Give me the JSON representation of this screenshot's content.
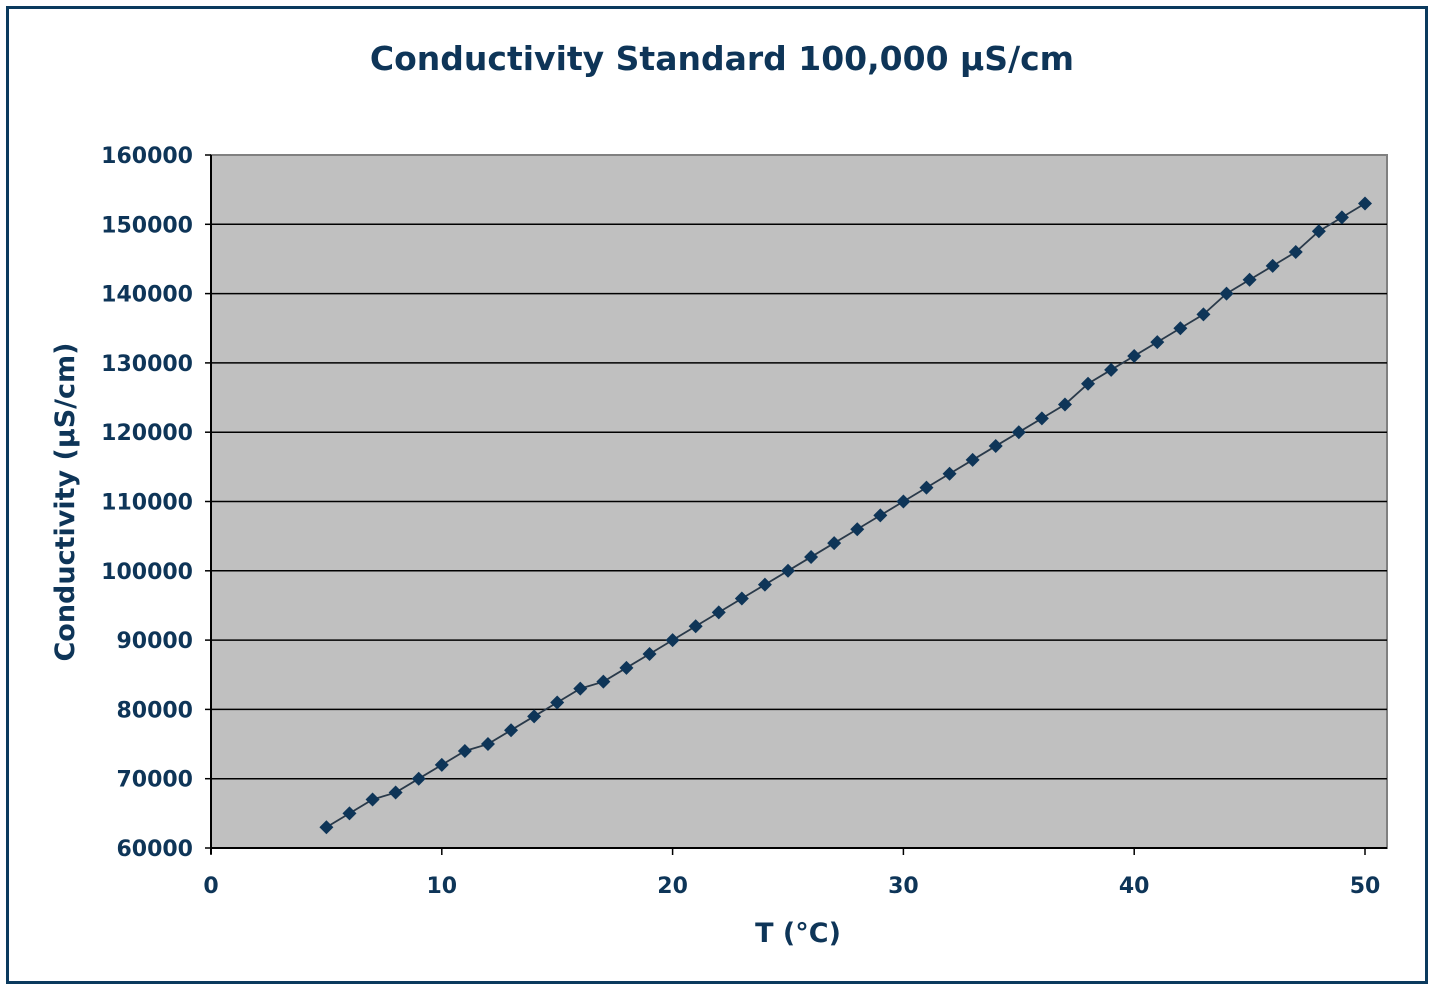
{
  "chart_data": {
    "type": "line",
    "title": "Conductivity Standard 100,000 µS/cm",
    "xlabel": "T (°C)",
    "ylabel": "Conductivity (µS/cm)",
    "xlim": [
      0,
      50
    ],
    "ylim": [
      60000,
      160000
    ],
    "xticks": [
      0,
      10,
      20,
      30,
      40,
      50
    ],
    "yticks": [
      60000,
      70000,
      80000,
      90000,
      100000,
      110000,
      120000,
      130000,
      140000,
      150000,
      160000
    ],
    "grid": "horizontal",
    "plot_background": "#c0c0c0",
    "series_color": "#0e3558",
    "marker": "diamond",
    "x": [
      5,
      6,
      7,
      8,
      9,
      10,
      11,
      12,
      13,
      14,
      15,
      16,
      17,
      18,
      19,
      20,
      21,
      22,
      23,
      24,
      25,
      26,
      27,
      28,
      29,
      30,
      31,
      32,
      33,
      34,
      35,
      36,
      37,
      38,
      39,
      40,
      41,
      42,
      43,
      44,
      45,
      46,
      47,
      48,
      49,
      50
    ],
    "y": [
      63000,
      65000,
      67000,
      68000,
      70000,
      72000,
      74000,
      75000,
      77000,
      79000,
      81000,
      83000,
      84000,
      86000,
      88000,
      90000,
      92000,
      94000,
      96000,
      98000,
      100000,
      102000,
      104000,
      106000,
      108000,
      110000,
      112000,
      114000,
      116000,
      118000,
      120000,
      122000,
      124000,
      127000,
      129000,
      131000,
      133000,
      135000,
      137000,
      140000,
      142000,
      144000,
      146000,
      149000,
      151000,
      153000
    ]
  }
}
